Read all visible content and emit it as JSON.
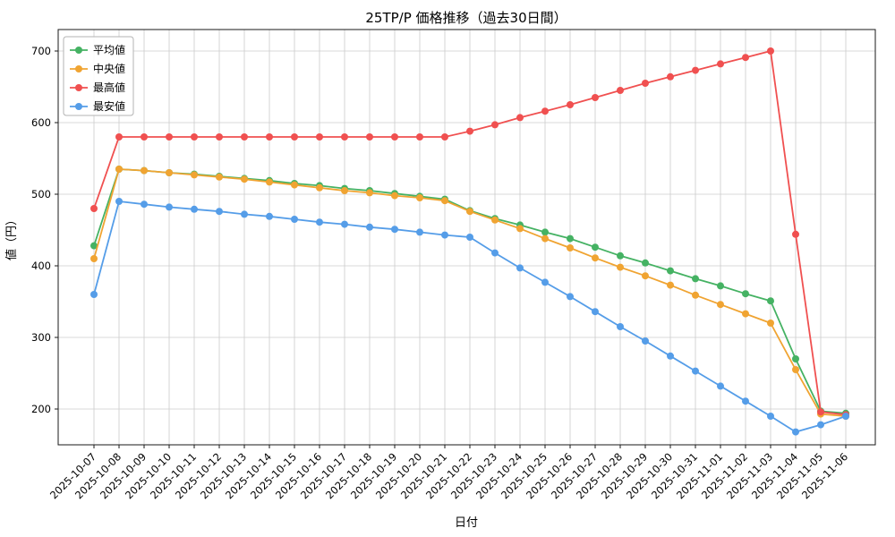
{
  "chart_data": {
    "type": "line",
    "title": "25TP/P 価格推移（過去30日間）",
    "xlabel": "日付",
    "ylabel": "値（円）",
    "ylim": [
      150,
      730
    ],
    "yticks": [
      200,
      300,
      400,
      500,
      600,
      700
    ],
    "grid": true,
    "legend_position": "upper-left",
    "categories": [
      "2025-10-07",
      "2025-10-08",
      "2025-10-09",
      "2025-10-10",
      "2025-10-11",
      "2025-10-12",
      "2025-10-13",
      "2025-10-14",
      "2025-10-15",
      "2025-10-16",
      "2025-10-17",
      "2025-10-18",
      "2025-10-19",
      "2025-10-20",
      "2025-10-21",
      "2025-10-22",
      "2025-10-23",
      "2025-10-24",
      "2025-10-25",
      "2025-10-26",
      "2025-10-27",
      "2025-10-28",
      "2025-10-29",
      "2025-10-30",
      "2025-10-31",
      "2025-11-01",
      "2025-11-02",
      "2025-11-03",
      "2025-11-04",
      "2025-11-05",
      "2025-11-06"
    ],
    "series": [
      {
        "name": "平均値",
        "color": "#45b263",
        "values": [
          428,
          535,
          533,
          530,
          528,
          525,
          522,
          519,
          515,
          512,
          508,
          505,
          501,
          497,
          493,
          477,
          466,
          457,
          447,
          438,
          426,
          414,
          404,
          393,
          382,
          372,
          361,
          351,
          270,
          197,
          194
        ]
      },
      {
        "name": "中央値",
        "color": "#f0a432",
        "values": [
          410,
          535,
          533,
          530,
          527,
          524,
          521,
          517,
          513,
          509,
          505,
          502,
          498,
          495,
          491,
          476,
          464,
          452,
          438,
          425,
          411,
          398,
          386,
          373,
          359,
          346,
          333,
          320,
          255,
          193,
          190
        ]
      },
      {
        "name": "最高値",
        "color": "#f05050",
        "values": [
          480,
          580,
          580,
          580,
          580,
          580,
          580,
          580,
          580,
          580,
          580,
          580,
          580,
          580,
          580,
          588,
          597,
          607,
          616,
          625,
          635,
          645,
          655,
          664,
          673,
          682,
          691,
          700,
          444,
          196,
          192
        ]
      },
      {
        "name": "最安値",
        "color": "#559de8",
        "values": [
          360,
          490,
          486,
          482,
          479,
          476,
          472,
          469,
          465,
          461,
          458,
          454,
          451,
          447,
          443,
          440,
          418,
          397,
          377,
          357,
          336,
          315,
          295,
          274,
          253,
          232,
          211,
          190,
          168,
          178,
          190
        ]
      }
    ]
  }
}
